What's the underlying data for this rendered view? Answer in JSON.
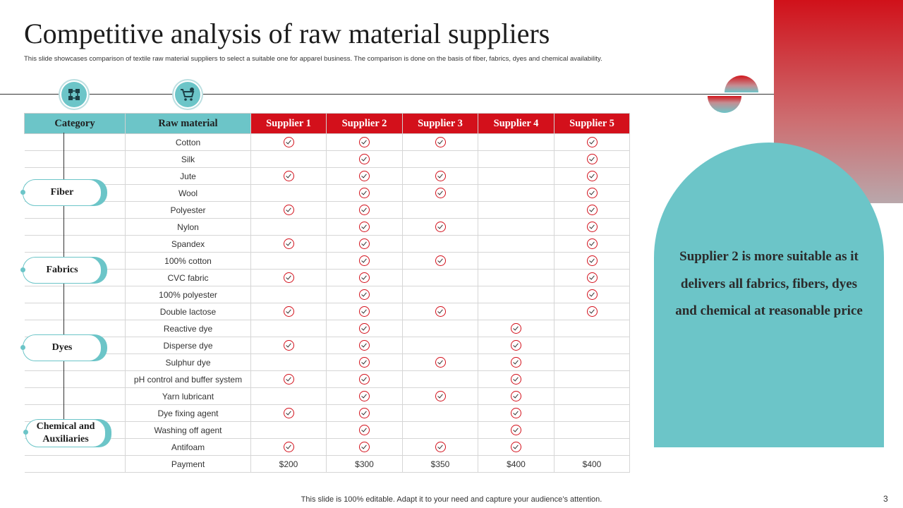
{
  "title": "Competitive analysis of raw material suppliers",
  "subtitle": "This slide showcases comparison of textile raw material suppliers to select a suitable one for apparel business. The comparison is done on the basis of fiber, fabrics, dyes and chemical availability.",
  "icons": {
    "left": "network-icon",
    "right": "shopping-cart-icon"
  },
  "colors": {
    "teal": "#6cc5c8",
    "red": "#d3101b"
  },
  "table": {
    "headers": [
      "Category",
      "Raw material",
      "Supplier 1",
      "Supplier 2",
      "Supplier 3",
      "Supplier 4",
      "Supplier 5"
    ],
    "rows": [
      {
        "material": "Cotton",
        "checks": [
          true,
          true,
          true,
          false,
          true
        ]
      },
      {
        "material": "Silk",
        "checks": [
          false,
          true,
          false,
          false,
          true
        ]
      },
      {
        "material": "Jute",
        "checks": [
          true,
          true,
          true,
          false,
          true
        ]
      },
      {
        "material": "Wool",
        "checks": [
          false,
          true,
          true,
          false,
          true
        ]
      },
      {
        "material": "Polyester",
        "checks": [
          true,
          true,
          false,
          false,
          true
        ]
      },
      {
        "material": "Nylon",
        "checks": [
          false,
          true,
          true,
          false,
          true
        ]
      },
      {
        "material": "Spandex",
        "checks": [
          true,
          true,
          false,
          false,
          true
        ]
      },
      {
        "material": "100% cotton",
        "checks": [
          false,
          true,
          true,
          false,
          true
        ]
      },
      {
        "material": "CVC fabric",
        "checks": [
          true,
          true,
          false,
          false,
          true
        ]
      },
      {
        "material": "100% polyester",
        "checks": [
          false,
          true,
          false,
          false,
          true
        ]
      },
      {
        "material": "Double lactose",
        "checks": [
          true,
          true,
          true,
          false,
          true
        ]
      },
      {
        "material": "Reactive dye",
        "checks": [
          false,
          true,
          false,
          true,
          false
        ]
      },
      {
        "material": "Disperse dye",
        "checks": [
          true,
          true,
          false,
          true,
          false
        ]
      },
      {
        "material": "Sulphur dye",
        "checks": [
          false,
          true,
          true,
          true,
          false
        ]
      },
      {
        "material": "pH control and buffer system",
        "checks": [
          true,
          true,
          false,
          true,
          false
        ]
      },
      {
        "material": "Yarn lubricant",
        "checks": [
          false,
          true,
          true,
          true,
          false
        ]
      },
      {
        "material": "Dye fixing agent",
        "checks": [
          true,
          true,
          false,
          true,
          false
        ]
      },
      {
        "material": "Washing off agent",
        "checks": [
          false,
          true,
          false,
          true,
          false
        ]
      },
      {
        "material": "Antifoam",
        "checks": [
          true,
          true,
          true,
          true,
          false
        ]
      }
    ],
    "payment": {
      "label": "Payment",
      "values": [
        "$200",
        "$300",
        "$350",
        "$400",
        "$400"
      ]
    }
  },
  "categories": {
    "fiber": "Fiber",
    "fabrics": "Fabrics",
    "dyes": "Dyes",
    "chemical_line1": "Chemical and",
    "chemical_line2": "Auxiliaries"
  },
  "callout": "Supplier  2 is more suitable  as it delivers all fabrics,  fibers, dyes and chemical at reasonable price",
  "footer": "This slide is 100% editable. Adapt it to your need and capture your audience’s attention.",
  "page_number": "3"
}
